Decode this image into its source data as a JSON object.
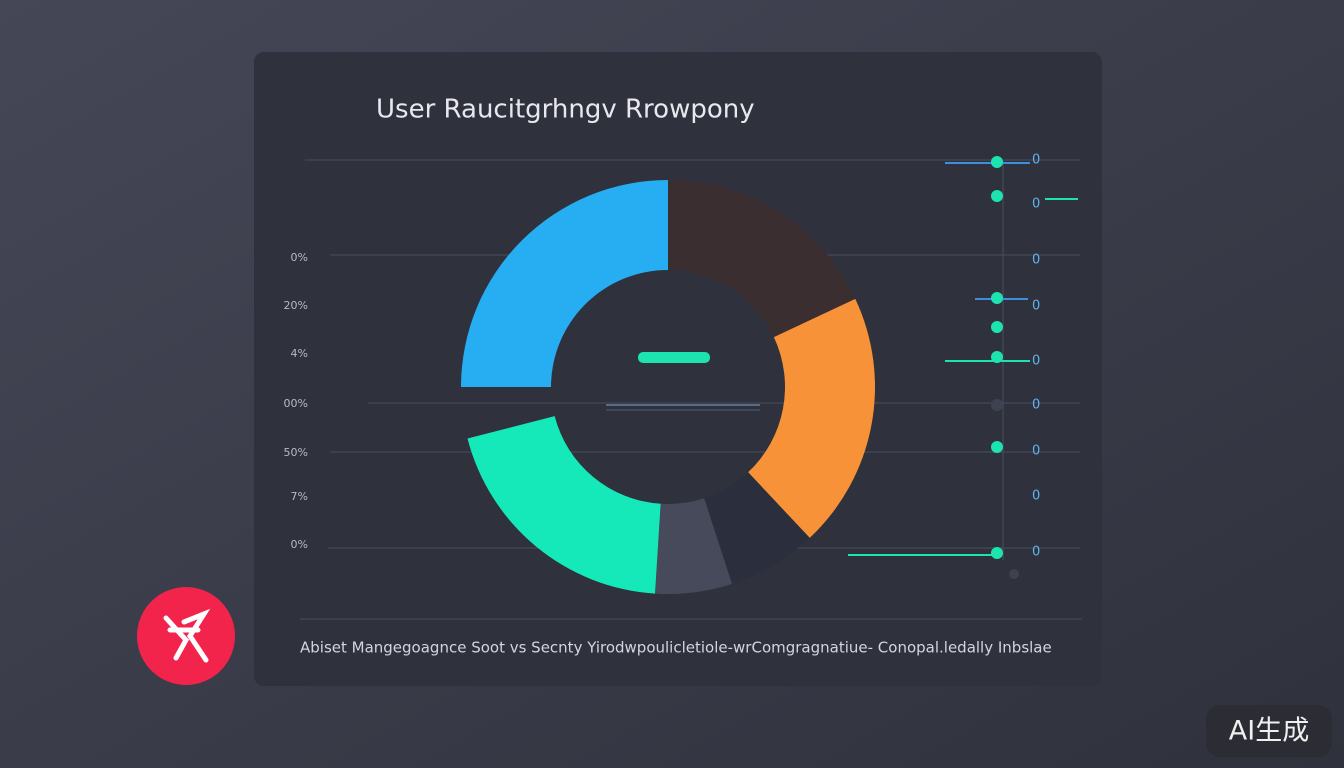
{
  "chart_data": {
    "type": "pie",
    "donut": true,
    "title": "User Raucitgrhngv Rrowpony",
    "values": [
      25,
      18,
      20,
      7,
      6,
      20
    ],
    "colors": [
      "#27aef2",
      "#3a2e30",
      "#f79238",
      "#2b2e3d",
      "#464a5b",
      "#16e9b9"
    ],
    "y_labels": [
      "0%",
      "20%",
      "4%",
      "00%",
      "50%",
      "7%",
      "0%"
    ],
    "side_labels": [
      "0",
      "0",
      "0",
      "0",
      "0",
      "0",
      "0",
      "0",
      "0"
    ],
    "caption": "Abiset Mangegoagnce Soot ⅴs Secnty Yirodwpoulicletiole-wrComgragnatiue- Conopal.ledally Inbslae"
  },
  "watermark": "AI生成"
}
